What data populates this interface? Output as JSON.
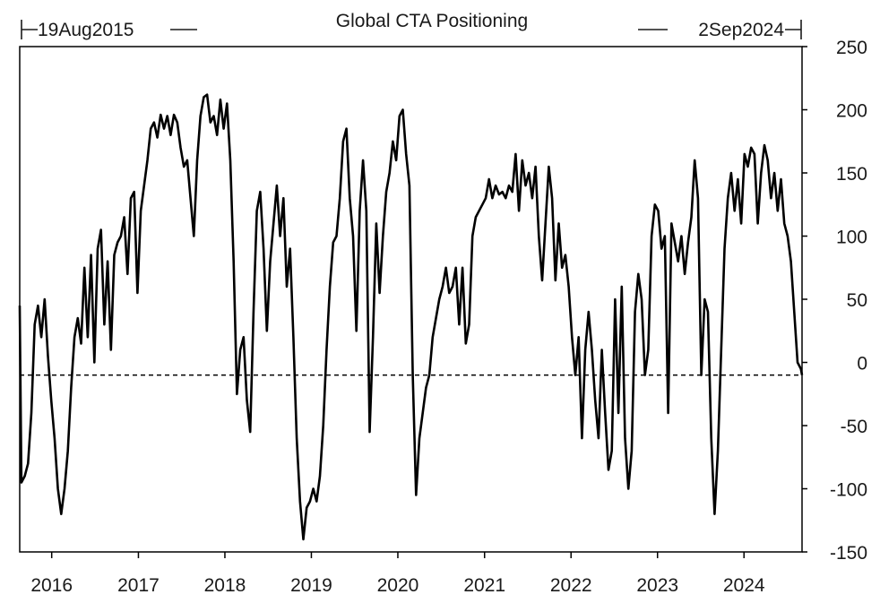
{
  "chart_data": {
    "type": "line",
    "title": "Global CTA Positioning",
    "start_label": "19Aug2015",
    "end_label": "2Sep2024",
    "x_start": "2015-08-19",
    "x_end": "2024-09-02",
    "xlabel": "",
    "ylabel": "",
    "ylim": [
      -150,
      250
    ],
    "y_ticks": [
      250,
      200,
      150,
      100,
      50,
      0,
      -50,
      -100,
      -150
    ],
    "x_ticks": [
      "2016",
      "2017",
      "2018",
      "2019",
      "2020",
      "2021",
      "2022",
      "2023",
      "2024"
    ],
    "reference_line": {
      "y": -10,
      "style": "dashed"
    },
    "series": [
      {
        "color": "#000000",
        "points": [
          [
            "2015-08-19",
            45
          ],
          [
            "2015-08-26",
            -95
          ],
          [
            "2015-09-09",
            -90
          ],
          [
            "2015-09-23",
            -80
          ],
          [
            "2015-10-07",
            -40
          ],
          [
            "2015-10-21",
            30
          ],
          [
            "2015-11-04",
            45
          ],
          [
            "2015-11-18",
            20
          ],
          [
            "2015-12-02",
            50
          ],
          [
            "2015-12-16",
            5
          ],
          [
            "2015-12-30",
            -30
          ],
          [
            "2016-01-13",
            -60
          ],
          [
            "2016-01-27",
            -100
          ],
          [
            "2016-02-10",
            -120
          ],
          [
            "2016-02-24",
            -100
          ],
          [
            "2016-03-09",
            -70
          ],
          [
            "2016-03-23",
            -20
          ],
          [
            "2016-04-06",
            20
          ],
          [
            "2016-04-20",
            35
          ],
          [
            "2016-05-04",
            15
          ],
          [
            "2016-05-18",
            75
          ],
          [
            "2016-06-01",
            20
          ],
          [
            "2016-06-15",
            85
          ],
          [
            "2016-06-29",
            0
          ],
          [
            "2016-07-13",
            90
          ],
          [
            "2016-07-27",
            105
          ],
          [
            "2016-08-10",
            30
          ],
          [
            "2016-08-24",
            80
          ],
          [
            "2016-09-07",
            10
          ],
          [
            "2016-09-21",
            85
          ],
          [
            "2016-10-05",
            95
          ],
          [
            "2016-10-19",
            100
          ],
          [
            "2016-11-02",
            115
          ],
          [
            "2016-11-16",
            70
          ],
          [
            "2016-11-30",
            130
          ],
          [
            "2016-12-14",
            135
          ],
          [
            "2016-12-28",
            55
          ],
          [
            "2017-01-11",
            120
          ],
          [
            "2017-01-25",
            140
          ],
          [
            "2017-02-08",
            160
          ],
          [
            "2017-02-22",
            185
          ],
          [
            "2017-03-08",
            190
          ],
          [
            "2017-03-22",
            178
          ],
          [
            "2017-04-05",
            196
          ],
          [
            "2017-04-19",
            185
          ],
          [
            "2017-05-03",
            195
          ],
          [
            "2017-05-17",
            180
          ],
          [
            "2017-05-31",
            196
          ],
          [
            "2017-06-14",
            190
          ],
          [
            "2017-06-28",
            170
          ],
          [
            "2017-07-12",
            155
          ],
          [
            "2017-07-26",
            160
          ],
          [
            "2017-08-09",
            130
          ],
          [
            "2017-08-23",
            100
          ],
          [
            "2017-09-06",
            160
          ],
          [
            "2017-09-20",
            195
          ],
          [
            "2017-10-04",
            210
          ],
          [
            "2017-10-18",
            212
          ],
          [
            "2017-11-01",
            190
          ],
          [
            "2017-11-15",
            195
          ],
          [
            "2017-11-29",
            180
          ],
          [
            "2017-12-13",
            208
          ],
          [
            "2017-12-27",
            185
          ],
          [
            "2018-01-10",
            205
          ],
          [
            "2018-01-24",
            160
          ],
          [
            "2018-02-07",
            80
          ],
          [
            "2018-02-21",
            -25
          ],
          [
            "2018-03-07",
            10
          ],
          [
            "2018-03-21",
            20
          ],
          [
            "2018-04-04",
            -30
          ],
          [
            "2018-04-18",
            -55
          ],
          [
            "2018-05-02",
            40
          ],
          [
            "2018-05-16",
            120
          ],
          [
            "2018-05-30",
            135
          ],
          [
            "2018-06-13",
            90
          ],
          [
            "2018-06-27",
            25
          ],
          [
            "2018-07-11",
            80
          ],
          [
            "2018-07-25",
            110
          ],
          [
            "2018-08-08",
            140
          ],
          [
            "2018-08-22",
            100
          ],
          [
            "2018-09-05",
            130
          ],
          [
            "2018-09-19",
            60
          ],
          [
            "2018-10-03",
            90
          ],
          [
            "2018-10-17",
            20
          ],
          [
            "2018-10-31",
            -60
          ],
          [
            "2018-11-14",
            -110
          ],
          [
            "2018-11-28",
            -140
          ],
          [
            "2018-12-12",
            -115
          ],
          [
            "2018-12-26",
            -110
          ],
          [
            "2019-01-09",
            -100
          ],
          [
            "2019-01-23",
            -110
          ],
          [
            "2019-02-06",
            -90
          ],
          [
            "2019-02-20",
            -50
          ],
          [
            "2019-03-06",
            10
          ],
          [
            "2019-03-20",
            60
          ],
          [
            "2019-04-03",
            95
          ],
          [
            "2019-04-17",
            100
          ],
          [
            "2019-05-01",
            130
          ],
          [
            "2019-05-15",
            175
          ],
          [
            "2019-05-29",
            185
          ],
          [
            "2019-06-12",
            130
          ],
          [
            "2019-06-26",
            100
          ],
          [
            "2019-07-10",
            25
          ],
          [
            "2019-07-24",
            120
          ],
          [
            "2019-08-07",
            160
          ],
          [
            "2019-08-21",
            120
          ],
          [
            "2019-09-04",
            -55
          ],
          [
            "2019-09-18",
            20
          ],
          [
            "2019-10-02",
            110
          ],
          [
            "2019-10-16",
            55
          ],
          [
            "2019-10-30",
            100
          ],
          [
            "2019-11-13",
            135
          ],
          [
            "2019-11-27",
            150
          ],
          [
            "2019-12-11",
            175
          ],
          [
            "2019-12-25",
            160
          ],
          [
            "2020-01-08",
            195
          ],
          [
            "2020-01-22",
            200
          ],
          [
            "2020-02-05",
            165
          ],
          [
            "2020-02-19",
            140
          ],
          [
            "2020-03-04",
            -10
          ],
          [
            "2020-03-18",
            -105
          ],
          [
            "2020-04-01",
            -60
          ],
          [
            "2020-04-15",
            -40
          ],
          [
            "2020-04-29",
            -20
          ],
          [
            "2020-05-13",
            -10
          ],
          [
            "2020-05-27",
            20
          ],
          [
            "2020-06-10",
            35
          ],
          [
            "2020-06-24",
            50
          ],
          [
            "2020-07-08",
            60
          ],
          [
            "2020-07-22",
            75
          ],
          [
            "2020-08-05",
            55
          ],
          [
            "2020-08-19",
            60
          ],
          [
            "2020-09-02",
            75
          ],
          [
            "2020-09-16",
            30
          ],
          [
            "2020-09-30",
            75
          ],
          [
            "2020-10-14",
            15
          ],
          [
            "2020-10-28",
            30
          ],
          [
            "2020-11-11",
            100
          ],
          [
            "2020-11-25",
            115
          ],
          [
            "2020-12-09",
            120
          ],
          [
            "2020-12-23",
            125
          ],
          [
            "2021-01-06",
            130
          ],
          [
            "2021-01-20",
            145
          ],
          [
            "2021-02-03",
            130
          ],
          [
            "2021-02-17",
            140
          ],
          [
            "2021-03-03",
            133
          ],
          [
            "2021-03-17",
            135
          ],
          [
            "2021-03-31",
            130
          ],
          [
            "2021-04-14",
            140
          ],
          [
            "2021-04-28",
            135
          ],
          [
            "2021-05-12",
            165
          ],
          [
            "2021-05-26",
            120
          ],
          [
            "2021-06-09",
            160
          ],
          [
            "2021-06-23",
            140
          ],
          [
            "2021-07-07",
            150
          ],
          [
            "2021-07-21",
            130
          ],
          [
            "2021-08-04",
            155
          ],
          [
            "2021-08-18",
            100
          ],
          [
            "2021-09-01",
            65
          ],
          [
            "2021-09-15",
            110
          ],
          [
            "2021-09-29",
            155
          ],
          [
            "2021-10-13",
            130
          ],
          [
            "2021-10-27",
            65
          ],
          [
            "2021-11-10",
            110
          ],
          [
            "2021-11-24",
            75
          ],
          [
            "2021-12-08",
            85
          ],
          [
            "2021-12-22",
            60
          ],
          [
            "2022-01-05",
            20
          ],
          [
            "2022-01-19",
            -10
          ],
          [
            "2022-02-02",
            20
          ],
          [
            "2022-02-16",
            -60
          ],
          [
            "2022-03-02",
            10
          ],
          [
            "2022-03-16",
            40
          ],
          [
            "2022-03-30",
            10
          ],
          [
            "2022-04-13",
            -30
          ],
          [
            "2022-04-27",
            -60
          ],
          [
            "2022-05-11",
            10
          ],
          [
            "2022-05-25",
            -40
          ],
          [
            "2022-06-08",
            -85
          ],
          [
            "2022-06-22",
            -70
          ],
          [
            "2022-07-06",
            50
          ],
          [
            "2022-07-20",
            -40
          ],
          [
            "2022-08-03",
            60
          ],
          [
            "2022-08-17",
            -60
          ],
          [
            "2022-08-31",
            -100
          ],
          [
            "2022-09-14",
            -70
          ],
          [
            "2022-09-28",
            40
          ],
          [
            "2022-10-12",
            70
          ],
          [
            "2022-10-26",
            50
          ],
          [
            "2022-11-09",
            -10
          ],
          [
            "2022-11-23",
            10
          ],
          [
            "2022-12-07",
            100
          ],
          [
            "2022-12-21",
            125
          ],
          [
            "2023-01-04",
            120
          ],
          [
            "2023-01-18",
            90
          ],
          [
            "2023-02-01",
            100
          ],
          [
            "2023-02-15",
            -40
          ],
          [
            "2023-03-01",
            110
          ],
          [
            "2023-03-15",
            95
          ],
          [
            "2023-03-29",
            80
          ],
          [
            "2023-04-12",
            100
          ],
          [
            "2023-04-26",
            70
          ],
          [
            "2023-05-10",
            95
          ],
          [
            "2023-05-24",
            115
          ],
          [
            "2023-06-07",
            160
          ],
          [
            "2023-06-21",
            130
          ],
          [
            "2023-07-05",
            -10
          ],
          [
            "2023-07-19",
            50
          ],
          [
            "2023-08-02",
            40
          ],
          [
            "2023-08-16",
            -60
          ],
          [
            "2023-08-30",
            -120
          ],
          [
            "2023-09-13",
            -70
          ],
          [
            "2023-09-27",
            10
          ],
          [
            "2023-10-11",
            90
          ],
          [
            "2023-10-25",
            130
          ],
          [
            "2023-11-08",
            150
          ],
          [
            "2023-11-22",
            120
          ],
          [
            "2023-12-06",
            145
          ],
          [
            "2023-12-20",
            110
          ],
          [
            "2024-01-03",
            165
          ],
          [
            "2024-01-17",
            155
          ],
          [
            "2024-01-31",
            170
          ],
          [
            "2024-02-14",
            165
          ],
          [
            "2024-02-28",
            110
          ],
          [
            "2024-03-13",
            150
          ],
          [
            "2024-03-27",
            172
          ],
          [
            "2024-04-10",
            160
          ],
          [
            "2024-04-24",
            130
          ],
          [
            "2024-05-08",
            150
          ],
          [
            "2024-05-22",
            120
          ],
          [
            "2024-06-05",
            145
          ],
          [
            "2024-06-19",
            110
          ],
          [
            "2024-07-03",
            100
          ],
          [
            "2024-07-17",
            80
          ],
          [
            "2024-07-31",
            40
          ],
          [
            "2024-08-14",
            0
          ],
          [
            "2024-08-28",
            -5
          ],
          [
            "2024-09-02",
            -10
          ]
        ]
      }
    ]
  }
}
